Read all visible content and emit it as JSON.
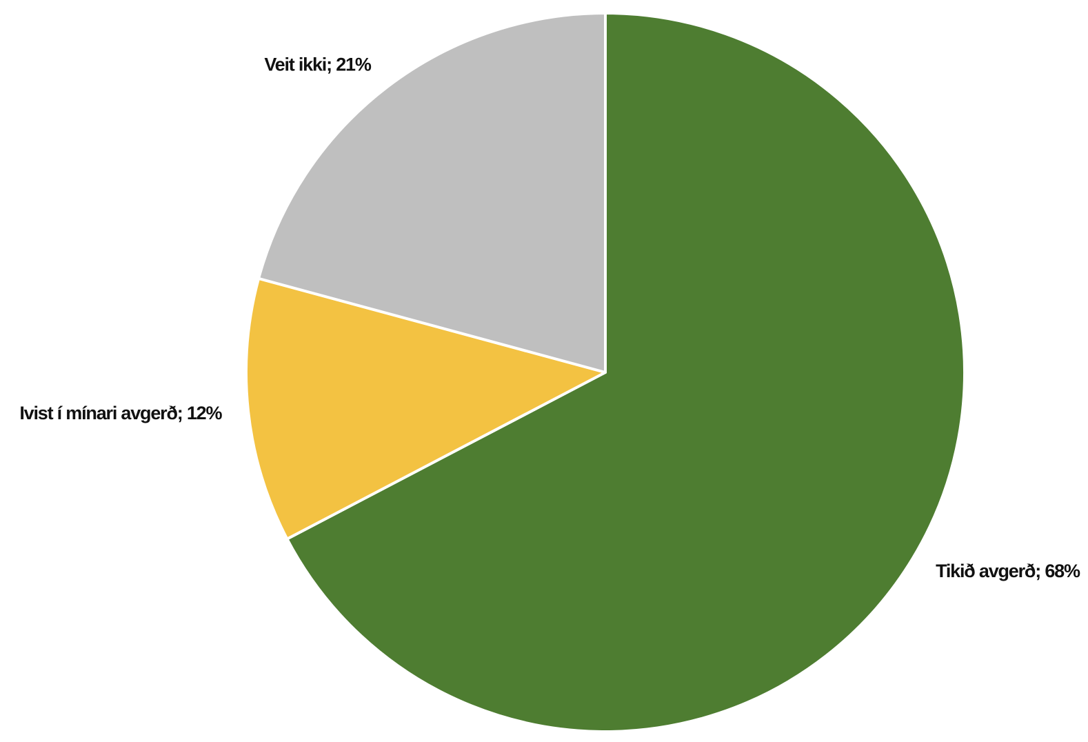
{
  "chart_data": {
    "type": "pie",
    "categories": [
      "Tikið avgerð",
      "Ivist í mínari avgerð",
      "Veit ikki"
    ],
    "values": [
      68,
      12,
      21
    ],
    "value_labels": [
      "68%",
      "12%",
      "21%"
    ],
    "label_separator": "; ",
    "colors": [
      "#4e7d31",
      "#f3c242",
      "#bfbfbf"
    ],
    "start_angle": "top",
    "direction": "clockwise"
  }
}
